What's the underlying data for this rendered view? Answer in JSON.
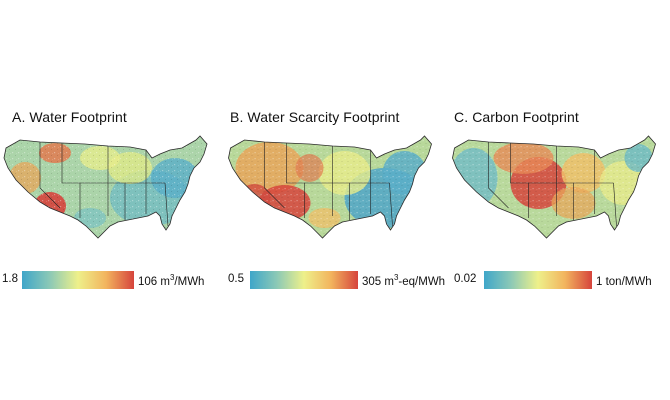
{
  "panels": [
    {
      "title": "A. Water Footprint",
      "legend": {
        "min": "1.8",
        "max": "106 m",
        "max_sup": "3",
        "max_unit": "/MWh"
      }
    },
    {
      "title": "B. Water Scarcity Footprint",
      "legend": {
        "min": "0.5",
        "max": "305 m",
        "max_sup": "3",
        "max_unit": "-eq/MWh"
      }
    },
    {
      "title": "C. Carbon Footprint",
      "legend": {
        "min": "0.02",
        "max": "1 ton/MWh",
        "max_sup": "",
        "max_unit": ""
      }
    }
  ],
  "colors": {
    "low": "#3fa6c9",
    "mid_low": "#8cc9b6",
    "mid": "#eef08a",
    "mid_high": "#f2b45e",
    "high": "#d6443c"
  }
}
